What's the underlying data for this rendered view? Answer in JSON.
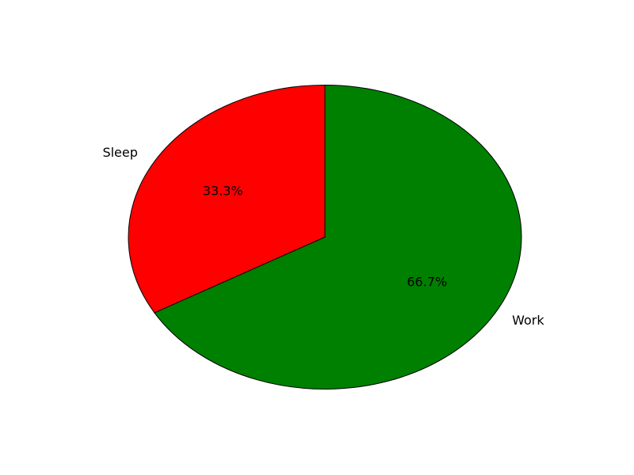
{
  "chart_data": {
    "type": "pie",
    "title": "",
    "categories": [
      "Sleep",
      "Work"
    ],
    "values": [
      33.3,
      66.7
    ],
    "percent_labels": [
      "33.3%",
      "66.7%"
    ],
    "colors": [
      "#ff0000",
      "#008000"
    ],
    "start_angle_deg": 90,
    "direction": "counterclockwise",
    "legend": "none"
  }
}
